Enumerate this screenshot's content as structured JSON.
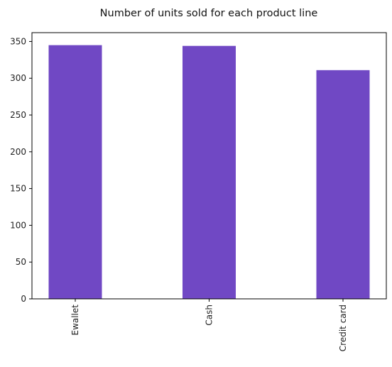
{
  "chart_data": {
    "type": "bar",
    "title": "Number of units sold for each product line",
    "xlabel": "",
    "ylabel": "",
    "categories": [
      "Ewallet",
      "Cash",
      "Credit card"
    ],
    "values": [
      345,
      344,
      311
    ],
    "ylim": [
      0,
      362
    ],
    "yticks": [
      0,
      50,
      100,
      150,
      200,
      250,
      300,
      350
    ],
    "grid": false,
    "bar_color": "#7048c4",
    "x_tick_rotation": "vertical"
  }
}
